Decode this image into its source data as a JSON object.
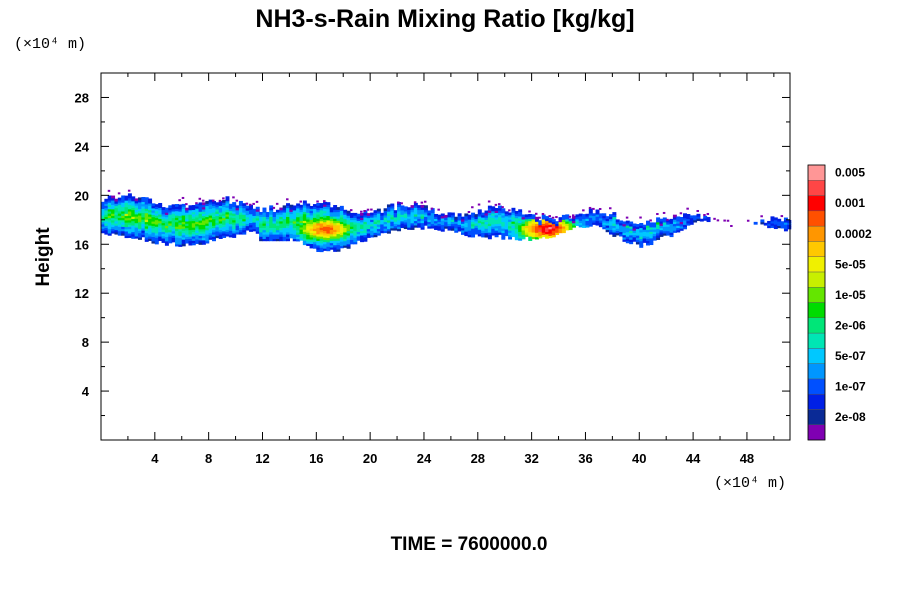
{
  "chart_data": {
    "type": "heatmap",
    "title": "NH3-s-Rain Mixing Ratio [kg/kg]",
    "ylabel": "Height",
    "xlabel": "",
    "x_unit": "(×10⁴ m)",
    "y_unit": "(×10⁴ m)",
    "footer": "TIME = 7600000.0",
    "xlim": [
      0,
      51.2
    ],
    "ylim": [
      0,
      30
    ],
    "x_ticks": [
      4,
      8,
      12,
      16,
      20,
      24,
      28,
      32,
      36,
      40,
      44,
      48
    ],
    "y_ticks": [
      4,
      8,
      12,
      16,
      20,
      24,
      28
    ],
    "grid": false,
    "colorbar": {
      "colors": [
        "#7f00b2",
        "#0a2a96",
        "#0020e6",
        "#0050ff",
        "#0096ff",
        "#00c8ff",
        "#00e6b4",
        "#00e678",
        "#00dc00",
        "#64e600",
        "#c8ef00",
        "#f0f000",
        "#ffc800",
        "#ff9600",
        "#ff5000",
        "#ff0000",
        "#ff4646",
        "#ff9696"
      ],
      "labels": [
        "2e-08",
        "1e-07",
        "5e-07",
        "2e-06",
        "1e-05",
        "5e-05",
        "0.0002",
        "0.001",
        "0.005"
      ]
    },
    "layer": {
      "x_range": [
        0,
        51.2
      ],
      "top_height": [
        19.6,
        17.7
      ],
      "base_height": [
        16.3,
        17.7
      ],
      "hotspots": [
        {
          "x": 16.5,
          "y": 17.2,
          "level": 14
        },
        {
          "x": 33.0,
          "y": 17.2,
          "level": 16
        },
        {
          "x": 40.0,
          "y": 18.2,
          "level": 12
        }
      ]
    }
  }
}
